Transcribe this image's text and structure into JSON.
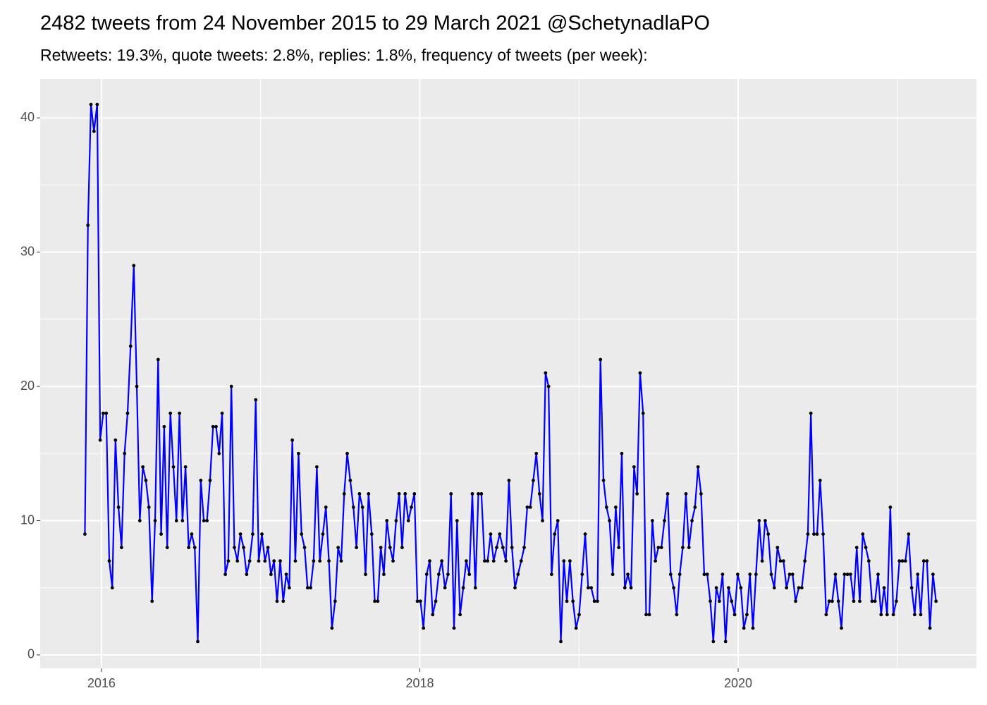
{
  "chart_data": {
    "type": "line",
    "title": "2482 tweets from 24 November 2015 to 29 March 2021 @SchetynadlaPO",
    "subtitle": "Retweets: 19.3%, quote tweets: 2.8%, replies: 1.8%, frequency of tweets (per week):",
    "color": "#0000ff",
    "point_color": "#000000",
    "grid": true,
    "minor_grid": true,
    "xlim": [
      2015.615,
      2021.497
    ],
    "xticks": [
      2016,
      2018,
      2020
    ],
    "ylim": [
      -1.0,
      42.9
    ],
    "yticks": [
      0,
      10,
      20,
      30,
      40
    ],
    "x": [
      2015.896,
      2015.915,
      2015.934,
      2015.953,
      2015.973,
      2015.992,
      2016.011,
      2016.03,
      2016.049,
      2016.068,
      2016.088,
      2016.107,
      2016.126,
      2016.145,
      2016.164,
      2016.183,
      2016.203,
      2016.222,
      2016.241,
      2016.26,
      2016.279,
      2016.298,
      2016.318,
      2016.337,
      2016.356,
      2016.375,
      2016.394,
      2016.413,
      2016.433,
      2016.452,
      2016.471,
      2016.49,
      2016.509,
      2016.528,
      2016.548,
      2016.567,
      2016.586,
      2016.605,
      2016.624,
      2016.643,
      2016.663,
      2016.682,
      2016.701,
      2016.72,
      2016.739,
      2016.758,
      2016.778,
      2016.797,
      2016.816,
      2016.835,
      2016.854,
      2016.873,
      2016.893,
      2016.912,
      2016.931,
      2016.95,
      2016.969,
      2016.988,
      2017.008,
      2017.027,
      2017.046,
      2017.065,
      2017.084,
      2017.103,
      2017.123,
      2017.142,
      2017.161,
      2017.18,
      2017.199,
      2017.218,
      2017.238,
      2017.257,
      2017.276,
      2017.295,
      2017.314,
      2017.333,
      2017.353,
      2017.372,
      2017.391,
      2017.41,
      2017.429,
      2017.448,
      2017.468,
      2017.487,
      2017.506,
      2017.525,
      2017.544,
      2017.563,
      2017.583,
      2017.602,
      2017.621,
      2017.64,
      2017.659,
      2017.678,
      2017.698,
      2017.717,
      2017.736,
      2017.755,
      2017.774,
      2017.793,
      2017.813,
      2017.832,
      2017.851,
      2017.87,
      2017.889,
      2017.908,
      2017.928,
      2017.947,
      2017.966,
      2017.985,
      2018.004,
      2018.023,
      2018.043,
      2018.062,
      2018.081,
      2018.1,
      2018.119,
      2018.138,
      2018.158,
      2018.177,
      2018.196,
      2018.215,
      2018.234,
      2018.253,
      2018.273,
      2018.292,
      2018.311,
      2018.33,
      2018.349,
      2018.368,
      2018.387,
      2018.407,
      2018.426,
      2018.445,
      2018.464,
      2018.483,
      2018.502,
      2018.522,
      2018.541,
      2018.56,
      2018.579,
      2018.598,
      2018.617,
      2018.637,
      2018.656,
      2018.675,
      2018.694,
      2018.713,
      2018.732,
      2018.752,
      2018.771,
      2018.79,
      2018.809,
      2018.828,
      2018.847,
      2018.867,
      2018.886,
      2018.905,
      2018.924,
      2018.943,
      2018.962,
      2018.982,
      2019.001,
      2019.02,
      2019.039,
      2019.058,
      2019.077,
      2019.097,
      2019.116,
      2019.135,
      2019.154,
      2019.173,
      2019.192,
      2019.212,
      2019.231,
      2019.25,
      2019.269,
      2019.288,
      2019.307,
      2019.327,
      2019.346,
      2019.365,
      2019.384,
      2019.403,
      2019.422,
      2019.442,
      2019.461,
      2019.48,
      2019.499,
      2019.518,
      2019.537,
      2019.557,
      2019.576,
      2019.595,
      2019.614,
      2019.633,
      2019.652,
      2019.672,
      2019.691,
      2019.71,
      2019.729,
      2019.748,
      2019.767,
      2019.787,
      2019.806,
      2019.825,
      2019.844,
      2019.863,
      2019.882,
      2019.902,
      2019.921,
      2019.94,
      2019.959,
      2019.978,
      2019.997,
      2020.017,
      2020.036,
      2020.055,
      2020.074,
      2020.093,
      2020.112,
      2020.132,
      2020.151,
      2020.17,
      2020.189,
      2020.208,
      2020.227,
      2020.247,
      2020.266,
      2020.285,
      2020.304,
      2020.323,
      2020.342,
      2020.361,
      2020.381,
      2020.4,
      2020.419,
      2020.438,
      2020.457,
      2020.476,
      2020.496,
      2020.515,
      2020.534,
      2020.553,
      2020.572,
      2020.591,
      2020.611,
      2020.63,
      2020.649,
      2020.668,
      2020.687,
      2020.706,
      2020.726,
      2020.745,
      2020.764,
      2020.783,
      2020.802,
      2020.821,
      2020.841,
      2020.86,
      2020.879,
      2020.898,
      2020.917,
      2020.936,
      2020.956,
      2020.975,
      2020.994,
      2021.013,
      2021.032,
      2021.051,
      2021.071,
      2021.09,
      2021.109,
      2021.128,
      2021.147,
      2021.166,
      2021.186,
      2021.205,
      2021.224,
      2021.243
    ],
    "values": [
      9,
      32,
      41,
      39,
      41,
      16,
      18,
      18,
      7,
      5,
      16,
      11,
      8,
      15,
      18,
      23,
      29,
      20,
      10,
      14,
      13,
      11,
      4,
      10,
      22,
      9,
      17,
      8,
      18,
      14,
      10,
      18,
      10,
      14,
      8,
      9,
      8,
      1,
      13,
      10,
      10,
      13,
      17,
      17,
      15,
      18,
      6,
      7,
      20,
      8,
      7,
      9,
      8,
      6,
      7,
      9,
      19,
      7,
      9,
      7,
      8,
      6,
      7,
      4,
      7,
      4,
      6,
      5,
      16,
      7,
      15,
      9,
      8,
      5,
      5,
      7,
      14,
      7,
      9,
      11,
      7,
      2,
      4,
      8,
      7,
      12,
      15,
      13,
      11,
      8,
      12,
      11,
      6,
      12,
      9,
      4,
      4,
      8,
      6,
      10,
      8,
      7,
      10,
      12,
      8,
      12,
      10,
      11,
      12,
      4,
      4,
      2,
      6,
      7,
      3,
      4,
      6,
      7,
      5,
      6,
      12,
      2,
      10,
      3,
      5,
      7,
      6,
      12,
      5,
      12,
      12,
      7,
      7,
      9,
      7,
      8,
      9,
      8,
      7,
      13,
      8,
      5,
      6,
      7,
      8,
      11,
      11,
      13,
      15,
      12,
      10,
      21,
      20,
      6,
      9,
      10,
      1,
      7,
      4,
      7,
      4,
      2,
      3,
      6,
      9,
      5,
      5,
      4,
      4,
      22,
      13,
      11,
      10,
      6,
      11,
      8,
      15,
      5,
      6,
      5,
      14,
      12,
      21,
      18,
      3,
      3,
      10,
      7,
      8,
      8,
      10,
      12,
      6,
      5,
      3,
      6,
      8,
      12,
      8,
      10,
      11,
      14,
      12,
      6,
      6,
      4,
      1,
      5,
      4,
      6,
      1,
      5,
      4,
      3,
      6,
      5,
      2,
      3,
      6,
      2,
      6,
      10,
      7,
      10,
      9,
      6,
      5,
      8,
      7,
      7,
      5,
      6,
      6,
      4,
      5,
      5,
      7,
      9,
      18,
      9,
      9,
      13,
      9,
      3,
      4,
      4,
      6,
      4,
      2,
      6,
      6,
      6,
      4,
      8,
      4,
      9,
      8,
      7,
      4,
      4,
      6,
      3,
      5,
      3,
      11,
      3,
      4,
      7,
      7,
      7,
      9,
      5,
      3,
      6,
      3,
      7,
      7,
      2,
      6,
      4
    ]
  }
}
